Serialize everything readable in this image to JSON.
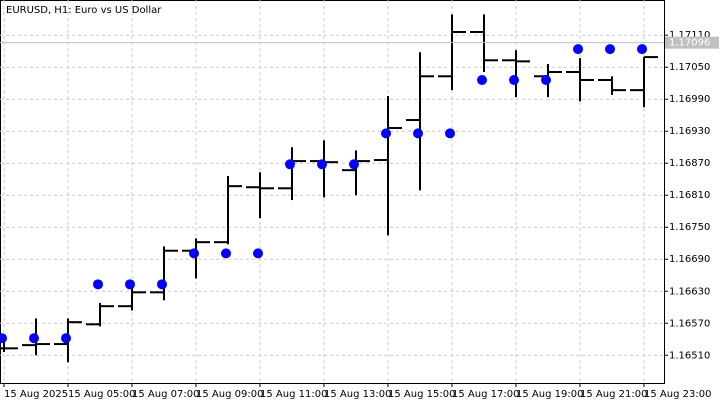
{
  "chart_data": {
    "type": "ohlc",
    "title": "EURUSD, H1:  Euro vs US Dollar",
    "categories": [
      "15 Aug 2025",
      null,
      "15 Aug 05:00",
      null,
      "15 Aug 07:00",
      null,
      "15 Aug 09:00",
      null,
      "15 Aug 11:00",
      null,
      "15 Aug 13:00",
      null,
      "15 Aug 15:00",
      null,
      "15 Aug 17:00",
      null,
      "15 Aug 19:00",
      null,
      "15 Aug 21:00",
      null,
      "15 Aug 23:00"
    ],
    "open": [
      1.16523,
      1.16529,
      1.16531,
      1.16568,
      1.16602,
      1.16628,
      1.16706,
      1.16722,
      1.16825,
      1.16823,
      1.16874,
      1.16857,
      1.16876,
      1.16951,
      1.17033,
      1.17116,
      1.17063,
      1.17033,
      1.17041,
      1.17026,
      1.17007
    ],
    "high": [
      1.16538,
      1.16579,
      1.16579,
      1.16608,
      1.16647,
      1.16714,
      1.16729,
      1.16846,
      1.16853,
      1.169,
      1.16913,
      1.16894,
      1.16996,
      1.17078,
      1.17149,
      1.17149,
      1.17082,
      1.17056,
      1.17067,
      1.17033,
      1.17069
    ],
    "low": [
      1.16516,
      1.1651,
      1.16497,
      1.16564,
      1.16594,
      1.16613,
      1.16654,
      1.16718,
      1.16767,
      1.16801,
      1.16806,
      1.1681,
      1.16735,
      1.16819,
      1.17007,
      1.17041,
      1.16994,
      1.16994,
      1.16986,
      1.16998,
      1.16975
    ],
    "close": [
      1.16523,
      1.16531,
      1.16572,
      1.16602,
      1.16628,
      1.16706,
      1.16722,
      1.16827,
      1.16823,
      1.16874,
      1.16872,
      1.16874,
      1.16936,
      1.17033,
      1.17116,
      1.17063,
      1.17061,
      1.17041,
      1.17026,
      1.17007,
      1.17069
    ],
    "color": "#000000",
    "signals": {
      "color": "#0000ff",
      "values": [
        1.16542,
        1.16542,
        1.16542,
        1.16643,
        1.16643,
        1.16643,
        1.16701,
        1.16701,
        1.16701,
        1.16868,
        1.16868,
        1.16868,
        1.16926,
        1.16926,
        1.16926,
        1.17026,
        1.17026,
        1.17026,
        1.17084,
        1.17084,
        1.17084
      ]
    },
    "last_price": {
      "value": 1.17096,
      "label": "1.17096"
    },
    "ylim": [
      1.16458,
      1.17176
    ],
    "yticks": [
      {
        "value": 1.1711,
        "label": "1.17110"
      },
      {
        "value": 1.1705,
        "label": "1.17050"
      },
      {
        "value": 1.1699,
        "label": "1.16990"
      },
      {
        "value": 1.1693,
        "label": "1.16930"
      },
      {
        "value": 1.1687,
        "label": "1.16870"
      },
      {
        "value": 1.1681,
        "label": "1.16810"
      },
      {
        "value": 1.1675,
        "label": "1.16750"
      },
      {
        "value": 1.1669,
        "label": "1.16690"
      },
      {
        "value": 1.1663,
        "label": "1.16630"
      },
      {
        "value": 1.1657,
        "label": "1.16570"
      },
      {
        "value": 1.1651,
        "label": "1.16510"
      }
    ],
    "grid": true
  }
}
